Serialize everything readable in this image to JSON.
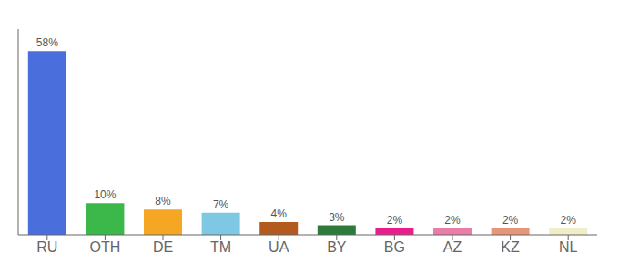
{
  "chart_data": {
    "type": "bar",
    "categories": [
      "RU",
      "OTH",
      "DE",
      "TM",
      "UA",
      "BY",
      "BG",
      "AZ",
      "KZ",
      "NL"
    ],
    "values": [
      58,
      10,
      8,
      7,
      4,
      3,
      2,
      2,
      2,
      2
    ],
    "value_labels": [
      "58%",
      "10%",
      "8%",
      "7%",
      "4%",
      "3%",
      "2%",
      "2%",
      "2%",
      "2%"
    ],
    "colors": [
      "#4a6fdc",
      "#3cb84a",
      "#f5a623",
      "#7ec8e3",
      "#b35a1f",
      "#2d7a3a",
      "#e91e8c",
      "#e87da8",
      "#e8967a",
      "#f0eec8"
    ],
    "data_labels": true,
    "ylim": [
      0,
      65
    ],
    "tick_labels": "x",
    "grid": false
  }
}
